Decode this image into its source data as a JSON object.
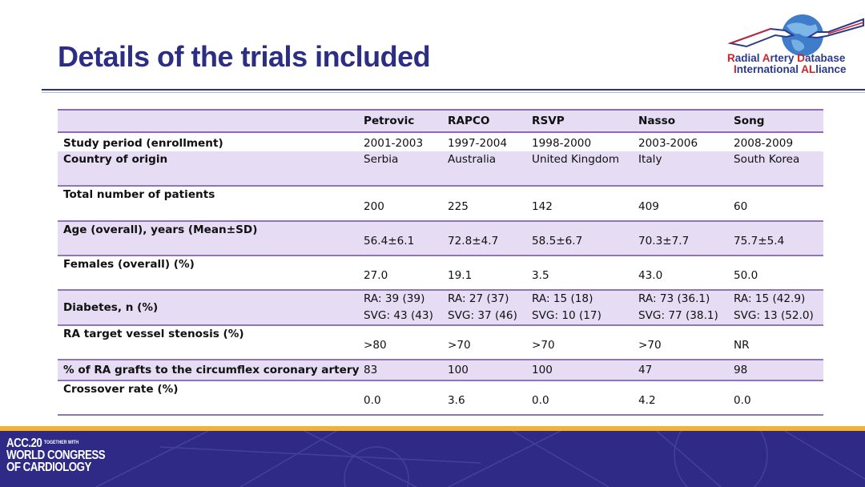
{
  "slide": {
    "title": "Details of the trials included"
  },
  "logo": {
    "line1_a": "R",
    "line1_b": "adial ",
    "line1_c": "A",
    "line1_d": "rtery ",
    "line1_e": "D",
    "line1_f": "atabase",
    "line2_a": "I",
    "line2_b": "nternational ",
    "line2_c": "AL",
    "line2_d": "liance"
  },
  "table": {
    "headers": [
      "",
      "Petrovic",
      "RAPCO",
      "RSVP",
      "Nasso",
      "Song"
    ],
    "rows": [
      {
        "label": "Study period (enrollment)",
        "values": [
          "2001-2003",
          "1997-2004",
          "1998-2000",
          "2003-2006",
          "2008-2009"
        ]
      },
      {
        "label": "Country of origin",
        "values": [
          "Serbia",
          "Australia",
          "United Kingdom",
          "Italy",
          "South Korea"
        ]
      },
      {
        "label": "Total number of patients",
        "values": [
          "200",
          "225",
          "142",
          "409",
          "60"
        ]
      },
      {
        "label": "Age (overall), years (Mean±SD)",
        "values": [
          "56.4±6.1",
          "72.8±4.7",
          "58.5±6.7",
          "70.3±7.7",
          "75.7±5.4"
        ]
      },
      {
        "label": "Females (overall) (%)",
        "values": [
          "27.0",
          "19.1",
          "3.5",
          "43.0",
          "50.0"
        ]
      },
      {
        "label": "Diabetes, n (%)",
        "values_ra": [
          "RA: 39 (39)",
          "RA: 27 (37)",
          "RA: 15 (18)",
          "RA: 73 (36.1)",
          "RA: 15 (42.9)"
        ],
        "values_svg": [
          "SVG: 43 (43)",
          "SVG: 37 (46)",
          "SVG: 10 (17)",
          "SVG: 77 (38.1)",
          "SVG: 13 (52.0)"
        ]
      },
      {
        "label": "RA target vessel stenosis (%)",
        "values": [
          ">80",
          ">70",
          ">70",
          ">70",
          "NR"
        ]
      },
      {
        "label": "% of RA grafts to the circumflex coronary artery",
        "values": [
          "83",
          "100",
          "100",
          "47",
          "98"
        ]
      },
      {
        "label": "Crossover rate (%)",
        "values": [
          "0.0",
          "3.6",
          "0.0",
          "4.2",
          "0.0"
        ]
      }
    ]
  },
  "footer": {
    "line1": "ACC.20",
    "tagline": "TOGETHER WITH",
    "line2": "WORLD CONGRESS",
    "line3": "OF CARDIOLOGY"
  },
  "colors": {
    "title": "#2c2d84",
    "row_shade": "#e6dcf3",
    "row_border": "#9076b6",
    "footer_band": "#2e2a85",
    "footer_gold": "#f2b233"
  }
}
